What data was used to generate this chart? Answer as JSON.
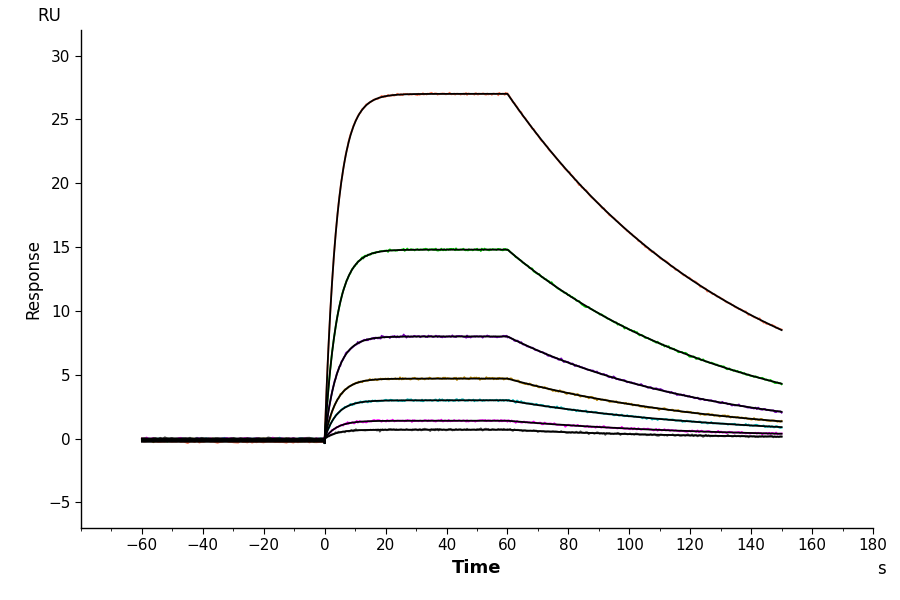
{
  "xlabel": "Time",
  "xlabel_unit": "s",
  "ylabel": "Response",
  "ylabel_top": "RU",
  "xlim": [
    -80,
    180
  ],
  "ylim": [
    -7,
    32
  ],
  "xticks": [
    -60,
    -40,
    -20,
    0,
    20,
    40,
    60,
    80,
    100,
    120,
    140,
    160,
    180
  ],
  "yticks": [
    -5,
    0,
    5,
    10,
    15,
    20,
    25,
    30
  ],
  "background_color": "#ffffff",
  "curve_sets": [
    {
      "y_max": 27.0,
      "y_end": 8.5,
      "color_data": "#ff7755",
      "color_fit": "#000000",
      "baseline": -0.25
    },
    {
      "y_max": 14.8,
      "y_end": 4.3,
      "color_data": "#00cc00",
      "color_fit": "#000000",
      "baseline": -0.15
    },
    {
      "y_max": 8.0,
      "y_end": 2.1,
      "color_data": "#7700bb",
      "color_fit": "#000000",
      "baseline": -0.1
    },
    {
      "y_max": 4.7,
      "y_end": 1.35,
      "color_data": "#bb8800",
      "color_fit": "#000000",
      "baseline": -0.05
    },
    {
      "y_max": 3.0,
      "y_end": 0.9,
      "color_data": "#00bbbb",
      "color_fit": "#000000",
      "baseline": -0.02
    },
    {
      "y_max": 1.4,
      "y_end": 0.38,
      "color_data": "#ff00ff",
      "color_fit": "#000000",
      "baseline": -0.01
    },
    {
      "y_max": 0.7,
      "y_end": 0.15,
      "color_data": "#555555",
      "color_fit": "#000000",
      "baseline": 0.0
    }
  ],
  "x_start": -60,
  "x_assoc_start": 0,
  "x_assoc_end": 60,
  "x_dissoc_end": 150,
  "lw": 1.3
}
